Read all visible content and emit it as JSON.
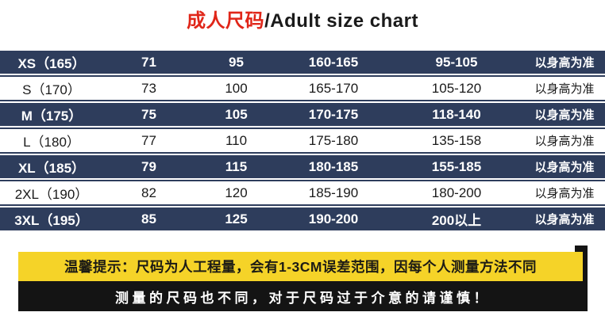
{
  "title": {
    "cn": "成人尺码",
    "en": "/Adult size chart"
  },
  "table": {
    "rows": [
      {
        "variant": "dark",
        "cells": [
          "XS（165）",
          "71",
          "95",
          "160-165",
          "95-105",
          "以身高为准"
        ]
      },
      {
        "variant": "light",
        "cells": [
          "S（170）",
          "73",
          "100",
          "165-170",
          "105-120",
          "以身高为准"
        ]
      },
      {
        "variant": "dark",
        "cells": [
          "M（175）",
          "75",
          "105",
          "170-175",
          "118-140",
          "以身高为准"
        ]
      },
      {
        "variant": "light",
        "cells": [
          "L（180）",
          "77",
          "110",
          "175-180",
          "135-158",
          "以身高为准"
        ]
      },
      {
        "variant": "dark",
        "cells": [
          "XL（185）",
          "79",
          "115",
          "180-185",
          "155-185",
          "以身高为准"
        ]
      },
      {
        "variant": "light",
        "cells": [
          "2XL（190）",
          "82",
          "120",
          "185-190",
          "180-200",
          "以身高为准"
        ]
      },
      {
        "variant": "dark",
        "cells": [
          "3XL（195）",
          "85",
          "125",
          "190-200",
          "200以上",
          "以身高为准"
        ]
      }
    ]
  },
  "notice": {
    "yellow_text": "温馨提示：尺码为人工程量，会有1-3CM误差范围，因每个人测量方法不同",
    "black_text": "测量的尺码也不同，对于尺码过于介意的请谨慎！"
  },
  "colors": {
    "navy": "#2e3d5c",
    "red": "#e02619",
    "yellow": "#f5d328",
    "black_bar": "#141414"
  }
}
